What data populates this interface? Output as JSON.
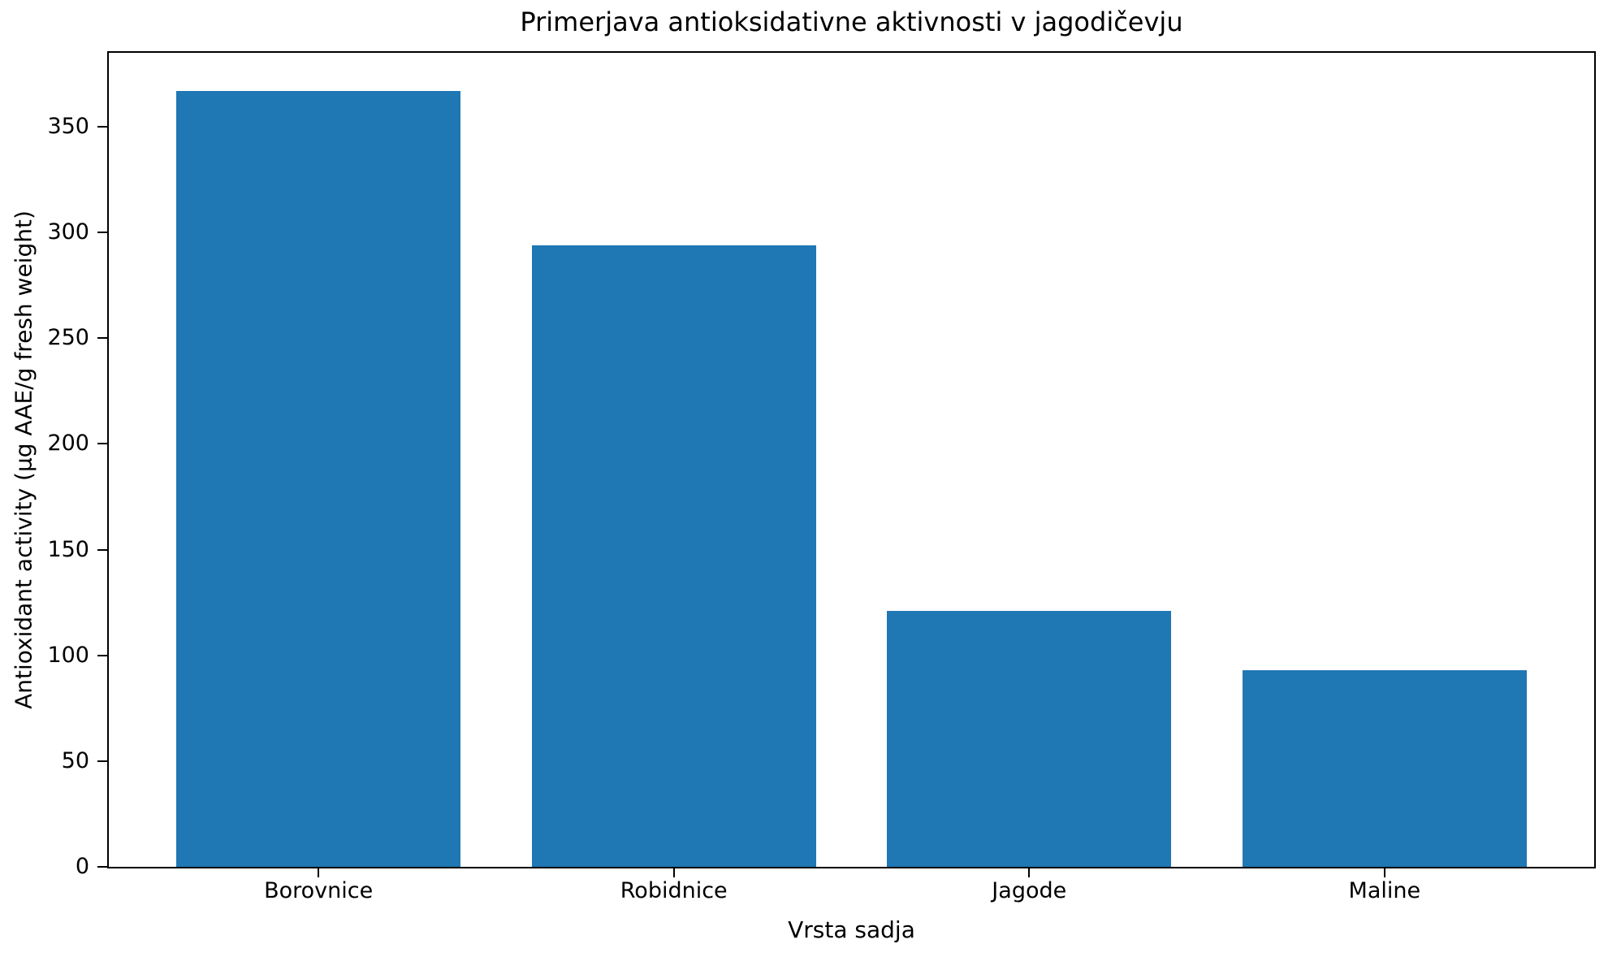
{
  "chart_data": {
    "type": "bar",
    "title": "Primerjava antioksidativne aktivnosti v jagodičevju",
    "xlabel": "Vrsta sadja",
    "ylabel": "Antioxidant activity (µg AAE/g fresh weight)",
    "categories": [
      "Borovnice",
      "Robidnice",
      "Jagode",
      "Maline"
    ],
    "values": [
      367,
      294,
      121,
      93
    ],
    "yticks": [
      0,
      50,
      100,
      150,
      200,
      250,
      300,
      350
    ],
    "ylim": [
      0,
      385
    ],
    "xlim": [
      -0.59,
      3.59
    ],
    "bar_width": 0.8,
    "bar_color": "#1f77b4",
    "axis_color": "#000000",
    "text_color": "#000000",
    "background_color": "#ffffff",
    "grid": false,
    "legend_position": "none"
  }
}
